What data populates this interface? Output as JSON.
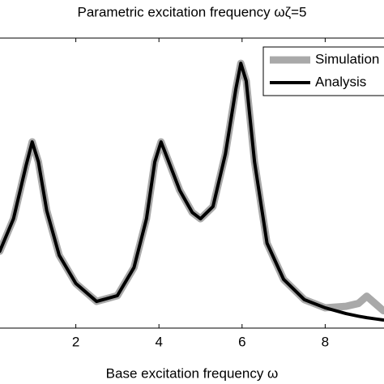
{
  "chart_data": {
    "type": "line",
    "title": "Parametric excitation frequency ωζ=5",
    "xlabel": "Base excitation frequency ω",
    "x": [
      0.17,
      0.5,
      0.8,
      0.95,
      1.1,
      1.3,
      1.6,
      2.0,
      2.5,
      3.0,
      3.4,
      3.7,
      3.9,
      4.05,
      4.2,
      4.5,
      4.8,
      5.0,
      5.3,
      5.6,
      5.85,
      5.97,
      6.1,
      6.3,
      6.6,
      7.0,
      7.5,
      8.0,
      8.5,
      8.8,
      9.0,
      9.2,
      9.4
    ],
    "series": [
      {
        "name": "Simulation",
        "color": "#a9a9a9",
        "values": [
          0.265,
          0.377,
          0.559,
          0.642,
          0.573,
          0.405,
          0.251,
          0.154,
          0.092,
          0.112,
          0.209,
          0.377,
          0.573,
          0.642,
          0.587,
          0.475,
          0.399,
          0.377,
          0.419,
          0.601,
          0.824,
          0.913,
          0.852,
          0.573,
          0.293,
          0.168,
          0.098,
          0.07,
          0.075,
          0.085,
          0.11,
          0.085,
          0.06
        ]
      },
      {
        "name": "Analysis",
        "color": "#000000",
        "values": [
          0.265,
          0.377,
          0.559,
          0.642,
          0.573,
          0.405,
          0.251,
          0.154,
          0.092,
          0.112,
          0.209,
          0.377,
          0.573,
          0.642,
          0.587,
          0.475,
          0.399,
          0.377,
          0.419,
          0.601,
          0.824,
          0.913,
          0.852,
          0.573,
          0.293,
          0.168,
          0.098,
          0.07,
          0.05,
          0.041,
          0.036,
          0.032,
          0.028
        ]
      }
    ],
    "xlim": [
      0,
      10
    ],
    "xticks": [
      2,
      4,
      6,
      8
    ],
    "ylim": [
      0,
      1
    ],
    "legend": "upper right"
  }
}
